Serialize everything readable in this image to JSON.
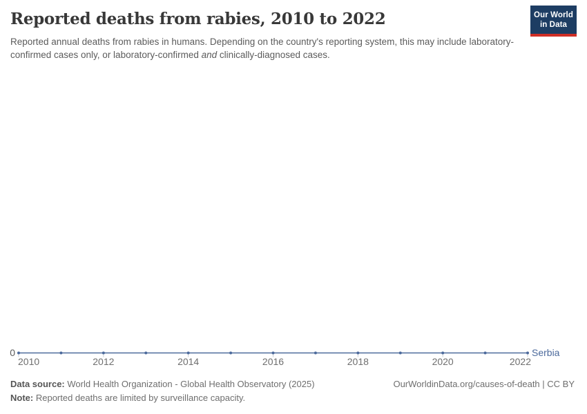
{
  "header": {
    "title": "Reported deaths from rabies, 2010 to 2022",
    "subtitle_part1": "Reported annual deaths from rabies in humans. Depending on the country's reporting system, this may include laboratory-confirmed cases only, or laboratory-confirmed ",
    "subtitle_italic": "and",
    "subtitle_part2": " clinically-diagnosed cases."
  },
  "logo": {
    "line1": "Our World",
    "line2": "in Data",
    "bg_color": "#1d3d63",
    "stripe_color": "#cf2e26"
  },
  "chart_data": {
    "type": "line",
    "title": "Reported deaths from rabies, 2010 to 2022",
    "x": [
      2010,
      2011,
      2012,
      2013,
      2014,
      2015,
      2016,
      2017,
      2018,
      2019,
      2020,
      2021,
      2022
    ],
    "series": [
      {
        "name": "Serbia",
        "values": [
          0,
          0,
          0,
          0,
          0,
          0,
          0,
          0,
          0,
          0,
          0,
          0,
          0
        ],
        "color": "#4C6A9C"
      }
    ],
    "xlabel": "",
    "ylabel": "",
    "x_tick_labels": [
      "2010",
      "2012",
      "2014",
      "2016",
      "2018",
      "2020",
      "2022"
    ],
    "y_tick_labels": [
      "0"
    ],
    "ylim": [
      0,
      0
    ],
    "grid": "off",
    "legend": "entity label at right end of line",
    "marker": "dot at every year",
    "axis_label_color": "#6e6e6e",
    "zero_label_color": "#5b5b5b",
    "tick_color": "#c8ccd4"
  },
  "footer": {
    "datasource_label": "Data source:",
    "datasource_text": "World Health Organization - Global Health Observatory (2025)",
    "note_label": "Note:",
    "note_text": "Reported deaths are limited by surveillance capacity.",
    "right_text": "OurWorldinData.org/causes-of-death | CC BY"
  }
}
